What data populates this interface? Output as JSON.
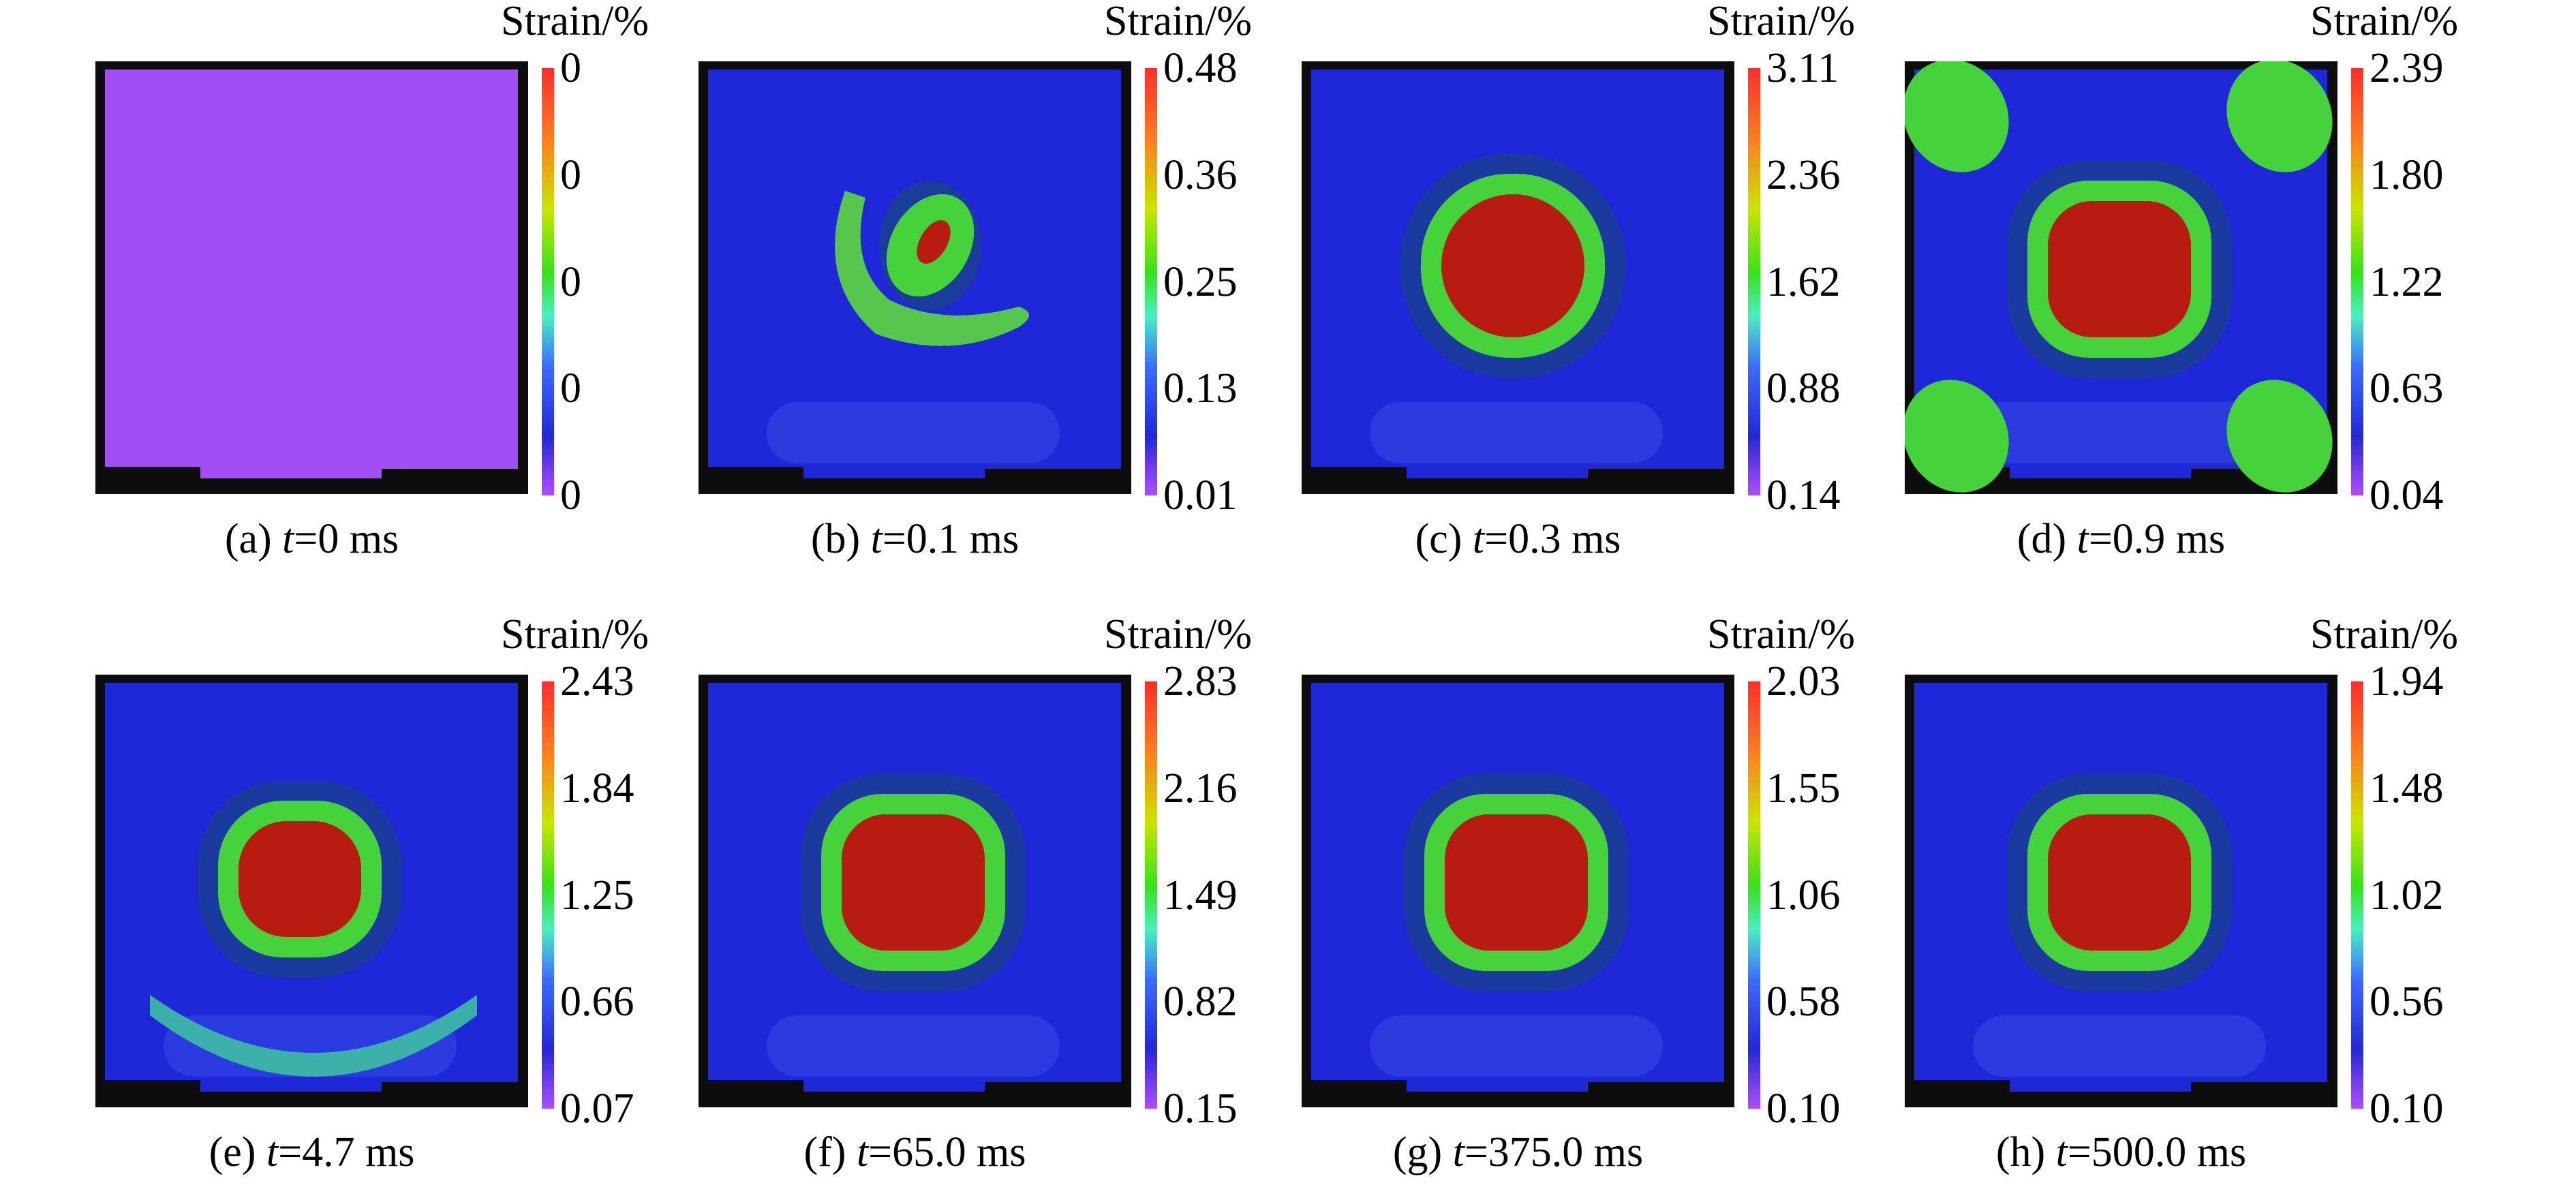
{
  "figure": {
    "colorbar_label": "Strain/%",
    "panels": [
      {
        "label": "(a)",
        "t_symbol": "t",
        "t_text": "=0 ms",
        "ticks": [
          "0",
          "0",
          "0",
          "0",
          "0"
        ],
        "pattern": "uniform",
        "base_color": "#a14ef4"
      },
      {
        "label": "(b)",
        "t_symbol": "t",
        "t_text": "=0.1 ms",
        "ticks": [
          "0.48",
          "0.36",
          "0.25",
          "0.13",
          "0.01"
        ],
        "pattern": "ring-offset",
        "base_color": "#1e28d8"
      },
      {
        "label": "(c)",
        "t_symbol": "t",
        "t_text": "=0.3 ms",
        "ticks": [
          "3.11",
          "2.36",
          "1.62",
          "0.88",
          "0.14"
        ],
        "pattern": "centered",
        "base_color": "#1e28d8"
      },
      {
        "label": "(d)",
        "t_symbol": "t",
        "t_text": "=0.9 ms",
        "ticks": [
          "2.39",
          "1.80",
          "1.22",
          "0.63",
          "0.04"
        ],
        "pattern": "centered-corners",
        "base_color": "#1e28d8"
      },
      {
        "label": "(e)",
        "t_symbol": "t",
        "t_text": "=4.7 ms",
        "ticks": [
          "2.43",
          "1.84",
          "1.25",
          "0.66",
          "0.07"
        ],
        "pattern": "centered-arc",
        "base_color": "#1e28d8"
      },
      {
        "label": "(f)",
        "t_symbol": "t",
        "t_text": "=65.0 ms",
        "ticks": [
          "2.83",
          "2.16",
          "1.49",
          "0.82",
          "0.15"
        ],
        "pattern": "centered-square",
        "base_color": "#1e28d8"
      },
      {
        "label": "(g)",
        "t_symbol": "t",
        "t_text": "=375.0 ms",
        "ticks": [
          "2.03",
          "1.55",
          "1.06",
          "0.58",
          "0.10"
        ],
        "pattern": "centered-square",
        "base_color": "#1e28d8"
      },
      {
        "label": "(h)",
        "t_symbol": "t",
        "t_text": "=500.0 ms",
        "ticks": [
          "1.94",
          "1.48",
          "1.02",
          "0.56",
          "0.10"
        ],
        "pattern": "centered-square",
        "base_color": "#1e28d8"
      }
    ]
  }
}
